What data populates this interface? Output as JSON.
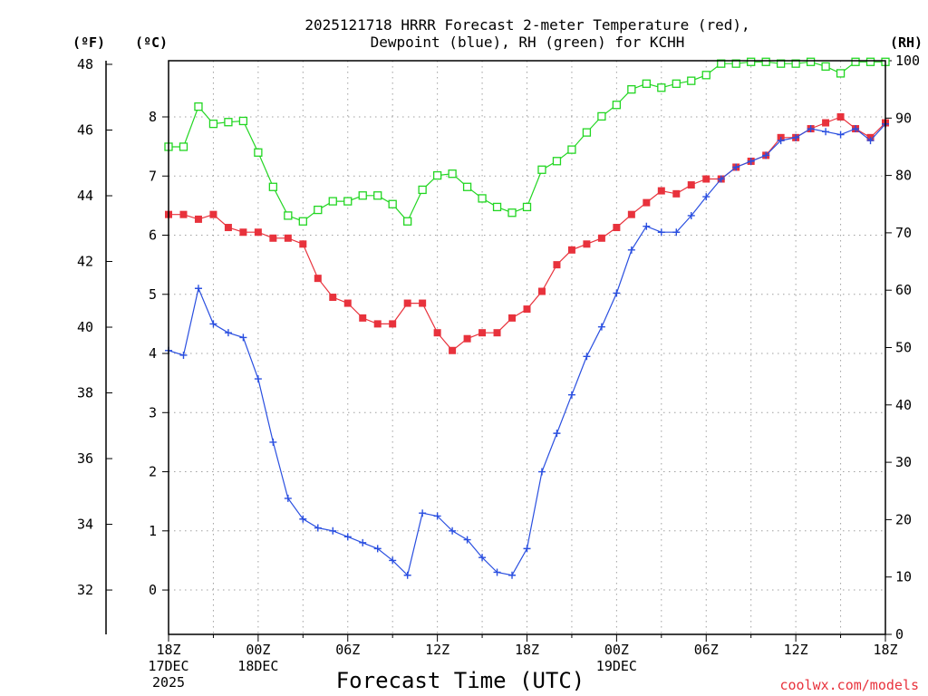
{
  "chart_data": {
    "type": "line",
    "title_line1": "2025121718 HRRR Forecast 2-meter Temperature (red),",
    "title_line2": "Dewpoint (blue), RH (green) for KCHH",
    "xlabel": "Forecast Time (UTC)",
    "credit": "coolwx.com/models",
    "unit_f": "(ºF)",
    "unit_c": "(ºC)",
    "unit_rh": "(RH)",
    "hours": [
      0,
      1,
      2,
      3,
      4,
      5,
      6,
      7,
      8,
      9,
      10,
      11,
      12,
      13,
      14,
      15,
      16,
      17,
      18,
      19,
      20,
      21,
      22,
      23,
      24,
      25,
      26,
      27,
      28,
      29,
      30,
      31,
      32,
      33,
      34,
      35,
      36,
      37,
      38,
      39,
      40,
      41,
      42,
      43,
      44,
      45,
      46,
      47,
      48
    ],
    "x_ticks": [
      {
        "hour": 0,
        "lines": [
          "18Z",
          "17DEC",
          "2025"
        ]
      },
      {
        "hour": 6,
        "lines": [
          "00Z",
          "18DEC"
        ]
      },
      {
        "hour": 12,
        "lines": [
          "06Z"
        ]
      },
      {
        "hour": 18,
        "lines": [
          "12Z"
        ]
      },
      {
        "hour": 24,
        "lines": [
          "18Z"
        ]
      },
      {
        "hour": 30,
        "lines": [
          "00Z",
          "19DEC"
        ]
      },
      {
        "hour": 36,
        "lines": [
          "06Z"
        ]
      },
      {
        "hour": 42,
        "lines": [
          "12Z"
        ]
      },
      {
        "hour": 48,
        "lines": [
          "18Z"
        ]
      }
    ],
    "ylim_c": [
      -0.75,
      8.95
    ],
    "yticks_c": [
      0,
      1,
      2,
      3,
      4,
      5,
      6,
      7,
      8
    ],
    "yticks_f": [
      32,
      34,
      36,
      38,
      40,
      42,
      44,
      46,
      48
    ],
    "ylim_rh": [
      0,
      100
    ],
    "yticks_rh": [
      0,
      10,
      20,
      30,
      40,
      50,
      60,
      70,
      80,
      90,
      100
    ],
    "grid": true,
    "series": [
      {
        "name": "Temperature",
        "unit": "C",
        "color": "#e8323c",
        "marker": "filled-square",
        "values": [
          6.35,
          6.35,
          6.27,
          6.35,
          6.13,
          6.05,
          6.05,
          5.95,
          5.95,
          5.85,
          5.27,
          4.95,
          4.85,
          4.6,
          4.5,
          4.5,
          4.85,
          4.85,
          4.35,
          4.05,
          4.25,
          4.35,
          4.35,
          4.6,
          4.75,
          5.05,
          5.5,
          5.75,
          5.85,
          5.95,
          6.13,
          6.35,
          6.55,
          6.75,
          6.7,
          6.85,
          6.95,
          6.95,
          7.15,
          7.25,
          7.35,
          7.65,
          7.65,
          7.8,
          7.9,
          8.0,
          7.8,
          7.65,
          7.9
        ]
      },
      {
        "name": "Dewpoint",
        "unit": "C",
        "color": "#2a4fe0",
        "marker": "plus",
        "values": [
          4.05,
          3.97,
          5.1,
          4.5,
          4.35,
          4.27,
          3.57,
          2.5,
          1.55,
          1.2,
          1.05,
          1.0,
          0.9,
          0.8,
          0.7,
          0.5,
          0.25,
          1.3,
          1.25,
          1.0,
          0.85,
          0.55,
          0.3,
          0.25,
          0.7,
          2.0,
          2.65,
          3.3,
          3.95,
          4.45,
          5.02,
          5.75,
          6.15,
          6.05,
          6.05,
          6.33,
          6.65,
          6.95,
          7.15,
          7.25,
          7.35,
          7.6,
          7.65,
          7.8,
          7.75,
          7.7,
          7.8,
          7.6,
          7.88
        ]
      },
      {
        "name": "RH",
        "unit": "%",
        "color": "#22d622",
        "marker": "open-square",
        "values": [
          85,
          85,
          92,
          89,
          89.3,
          89.5,
          84,
          78,
          73,
          72,
          74,
          75.5,
          75.5,
          76.5,
          76.5,
          75,
          72,
          77.5,
          80,
          80.3,
          78,
          76,
          74.5,
          73.5,
          74.5,
          81,
          82.5,
          84.5,
          87.5,
          90.3,
          92.3,
          95,
          96,
          95.3,
          96,
          96.5,
          97.5,
          99.5,
          99.5,
          99.8,
          99.8,
          99.5,
          99.5,
          99.8,
          99,
          97.8,
          99.8,
          99.8,
          99.8
        ]
      }
    ]
  }
}
